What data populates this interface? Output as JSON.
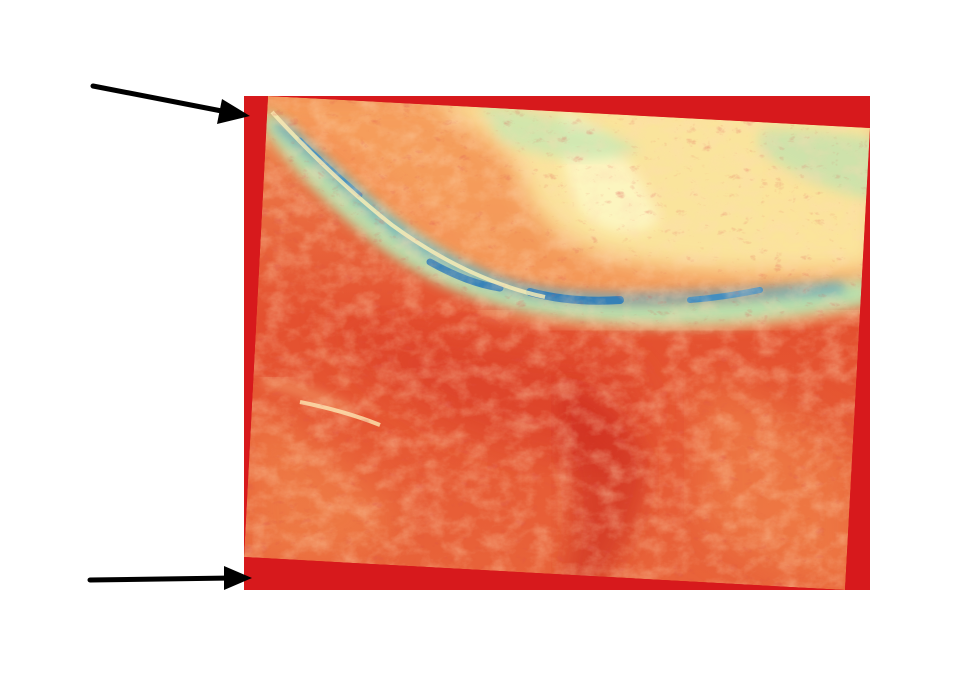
{
  "image": {
    "background_color": "#ffffff",
    "raster_frame_color": "#d7191c",
    "colormap": "Spectral",
    "colormap_stops": [
      "#d7191c",
      "#fdae61",
      "#ffffbf",
      "#abdda4",
      "#2b83ba"
    ],
    "arrow_color": "#000000",
    "arrows": [
      {
        "name": "top-left-arrow",
        "points_to": "top-left-corner-of-raster-frame"
      },
      {
        "name": "bottom-left-arrow",
        "points_to": "bottom-left-corner-of-raster-frame"
      }
    ]
  }
}
